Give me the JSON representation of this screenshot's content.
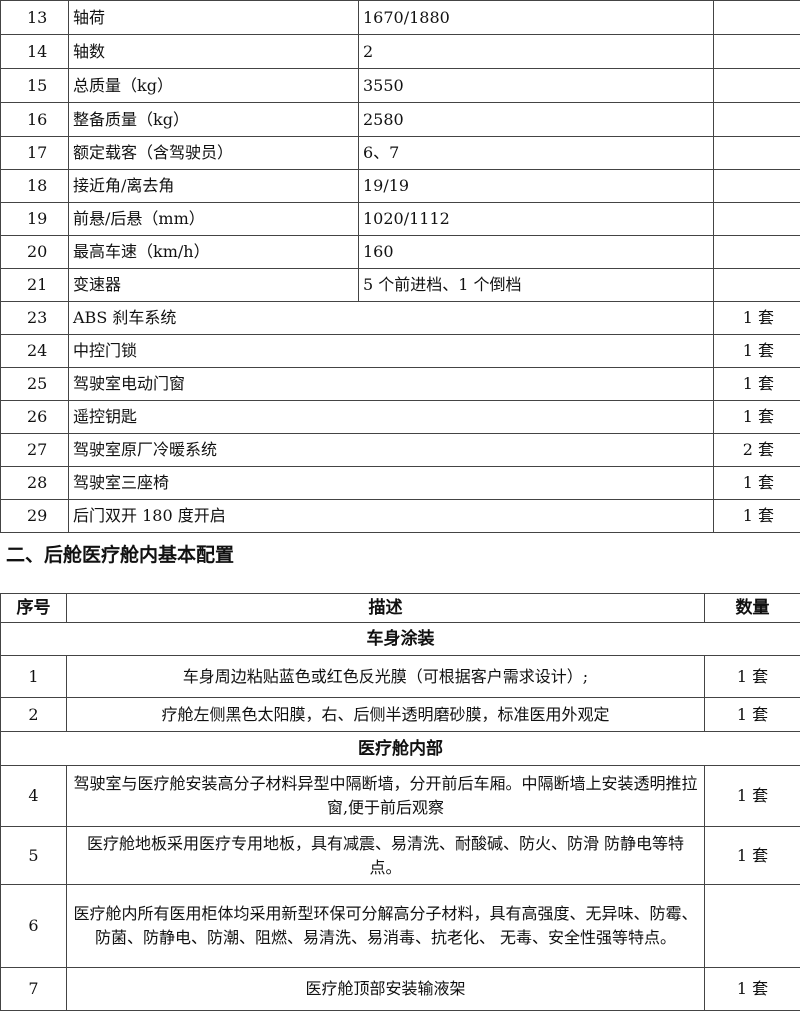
{
  "spec_table": {
    "rows": [
      {
        "no": "13",
        "item": "轴荷",
        "value": "1670/1880"
      },
      {
        "no": "14",
        "item": "轴数",
        "value": "2"
      },
      {
        "no": "15",
        "item": "总质量（kg）",
        "value": "3550"
      },
      {
        "no": "16",
        "item": "整备质量（kg）",
        "value": "2580"
      },
      {
        "no": "17",
        "item": "额定载客（含驾驶员）",
        "value": "6、7"
      },
      {
        "no": "18",
        "item": "接近角/离去角",
        "value": "19/19"
      },
      {
        "no": "19",
        "item": "前悬/后悬（mm）",
        "value": "1020/1112"
      },
      {
        "no": "20",
        "item": "最高车速（km/h）",
        "value": "160"
      },
      {
        "no": "21",
        "item": "变速器",
        "value": "5 个前进档、1 个倒档"
      }
    ],
    "equip_rows": [
      {
        "no": "23",
        "item": "ABS 刹车系统",
        "qty": "1 套"
      },
      {
        "no": "24",
        "item": "中控门锁",
        "qty": "1 套"
      },
      {
        "no": "25",
        "item": "驾驶室电动门窗",
        "qty": "1 套"
      },
      {
        "no": "26",
        "item": "遥控钥匙",
        "qty": "1 套"
      },
      {
        "no": "27",
        "item": "驾驶室原厂冷暖系统",
        "qty": "2 套"
      },
      {
        "no": "28",
        "item": "驾驶室三座椅",
        "qty": "1 套"
      },
      {
        "no": "29",
        "item": "后门双开 180 度开启",
        "qty": "1 套"
      }
    ]
  },
  "section_heading": "二、后舱医疗舱内基本配置",
  "cabin_table": {
    "headers": {
      "no": "序号",
      "desc": "描述",
      "qty": "数量"
    },
    "groups": [
      {
        "title": "车身涂装",
        "rows": [
          {
            "no": "1",
            "desc": "车身周边粘贴蓝色或红色反光膜（可根据客户需求设计）;",
            "qty": "1 套"
          },
          {
            "no": "2",
            "desc": "疗舱左侧黑色太阳膜，右、后侧半透明磨砂膜，标准医用外观定",
            "qty": "1 套"
          }
        ]
      },
      {
        "title": "医疗舱内部",
        "rows": [
          {
            "no": "4",
            "desc": "驾驶室与医疗舱安装高分子材料异型中隔断墙，分开前后车厢。中隔断墙上安装透明推拉窗,便于前后观察",
            "qty": "1 套"
          },
          {
            "no": "5",
            "desc": "医疗舱地板采用医疗专用地板，具有减震、易清洗、耐酸碱、防火、防滑 防静电等特点。",
            "qty": "1 套"
          },
          {
            "no": "6",
            "desc": "医疗舱内所有医用柜体均采用新型环保可分解高分子材料，具有高强度、无异味、防霉、防菌、防静电、防潮、阻燃、易清洗、易消毒、抗老化、 无毒、安全性强等特点。",
            "qty": ""
          },
          {
            "no": "7",
            "desc": "医疗舱顶部安装输液架",
            "qty": "1 套"
          }
        ]
      }
    ]
  }
}
